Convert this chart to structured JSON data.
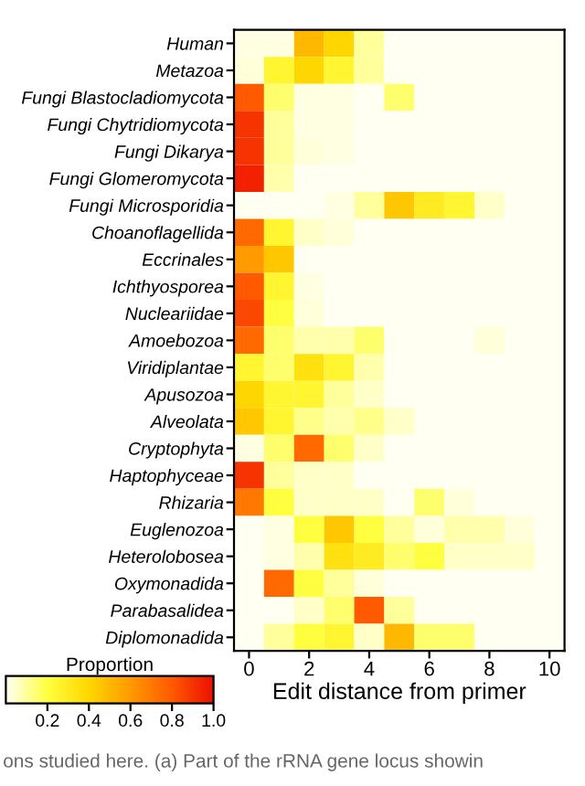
{
  "chart_data": {
    "type": "heatmap",
    "x": [
      0,
      1,
      2,
      3,
      4,
      5,
      6,
      7,
      8,
      9,
      10
    ],
    "y_categories": [
      "Human",
      "Metazoa",
      "Fungi Blastocladiomycota",
      "Fungi Chytridiomycota",
      "Fungi Dikarya",
      "Fungi Glomeromycota",
      "Fungi Microsporidia",
      "Choanoflagellida",
      "Eccrinales",
      "Ichthyosporea",
      "Nucleariidae",
      "Amoebozoa",
      "Viridiplantae",
      "Apusozoa",
      "Alveolata",
      "Cryptophyta",
      "Haptophyceae",
      "Rhizaria",
      "Euglenozoa",
      "Heterolobosea",
      "Oxymonadida",
      "Parabasalidea",
      "Diplomonadida"
    ],
    "cells": [
      [
        0.02,
        0.02,
        0.5,
        0.4,
        0.1,
        0,
        0,
        0,
        0,
        0,
        0
      ],
      [
        0.03,
        0.25,
        0.4,
        0.25,
        0.1,
        0,
        0,
        0,
        0,
        0,
        0
      ],
      [
        0.8,
        0.15,
        0.02,
        0.02,
        0,
        0.15,
        0,
        0,
        0,
        0,
        0
      ],
      [
        0.9,
        0.1,
        0.02,
        0.02,
        0,
        0,
        0,
        0,
        0,
        0,
        0
      ],
      [
        0.9,
        0.1,
        0.03,
        0.02,
        0,
        0,
        0,
        0,
        0,
        0,
        0
      ],
      [
        0.95,
        0.08,
        0,
        0,
        0,
        0,
        0,
        0,
        0,
        0,
        0
      ],
      [
        0,
        0,
        0,
        0.02,
        0.1,
        0.45,
        0.3,
        0.25,
        0.05,
        0,
        0
      ],
      [
        0.75,
        0.25,
        0.05,
        0.03,
        0,
        0,
        0,
        0,
        0,
        0,
        0
      ],
      [
        0.6,
        0.45,
        0,
        0,
        0,
        0,
        0,
        0,
        0,
        0,
        0
      ],
      [
        0.8,
        0.25,
        0.02,
        0,
        0,
        0,
        0,
        0,
        0,
        0,
        0
      ],
      [
        0.85,
        0.2,
        0.03,
        0,
        0,
        0,
        0,
        0,
        0,
        0,
        0
      ],
      [
        0.75,
        0.15,
        0.08,
        0.08,
        0.15,
        0,
        0,
        0,
        0.03,
        0,
        0
      ],
      [
        0.25,
        0.15,
        0.35,
        0.25,
        0.08,
        0,
        0,
        0,
        0,
        0,
        0
      ],
      [
        0.4,
        0.25,
        0.25,
        0.1,
        0.05,
        0,
        0,
        0,
        0,
        0,
        0
      ],
      [
        0.45,
        0.25,
        0.12,
        0.08,
        0.12,
        0.05,
        0,
        0,
        0,
        0,
        0
      ],
      [
        0.02,
        0.15,
        0.75,
        0.15,
        0.05,
        0,
        0,
        0,
        0,
        0,
        0
      ],
      [
        0.9,
        0.1,
        0.05,
        0.05,
        0,
        0,
        0,
        0,
        0,
        0,
        0
      ],
      [
        0.7,
        0.2,
        0.05,
        0.05,
        0.05,
        0,
        0.15,
        0.03,
        0,
        0,
        0
      ],
      [
        0,
        0.02,
        0.2,
        0.45,
        0.2,
        0.1,
        0.03,
        0.08,
        0.08,
        0.03,
        0
      ],
      [
        0,
        0.02,
        0.08,
        0.35,
        0.3,
        0.15,
        0.2,
        0.05,
        0.05,
        0.05,
        0
      ],
      [
        0,
        0.75,
        0.2,
        0.1,
        0.03,
        0,
        0,
        0,
        0,
        0,
        0
      ],
      [
        0,
        0,
        0.05,
        0.15,
        0.8,
        0.1,
        0,
        0,
        0,
        0,
        0
      ],
      [
        0,
        0.1,
        0.2,
        0.25,
        0.05,
        0.5,
        0.15,
        0.15,
        0,
        0,
        0
      ]
    ],
    "xlim": [
      -0.5,
      10.5
    ],
    "xticks": [
      0,
      2,
      4,
      6,
      8,
      10
    ],
    "xlabel": "Edit distance from primer",
    "clabel": "Proportion",
    "clim": [
      0,
      1.0
    ],
    "cticks": [
      {
        "value": 0.2,
        "label": "0.2"
      },
      {
        "value": 0.4,
        "label": "0.4"
      },
      {
        "value": 0.6,
        "label": "0.6"
      },
      {
        "value": 0.8,
        "label": "0.8"
      },
      {
        "value": 1.0,
        "label": "1.0"
      }
    ],
    "annotations": [
      "ons studied here. (a) Part of the rRNA gene locus showin"
    ]
  }
}
